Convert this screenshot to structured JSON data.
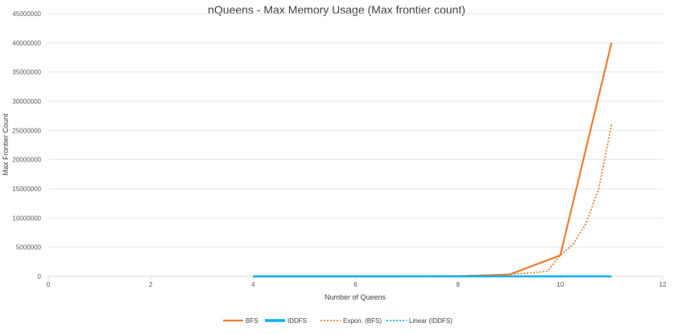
{
  "chart_data": {
    "type": "line",
    "title": "nQueens - Max Memory Usage (Max frontier count)",
    "xlabel": "Number of Queens",
    "ylabel": "Max Frontier Count",
    "xlim": [
      0,
      12
    ],
    "ylim": [
      0,
      45000000
    ],
    "x_ticks": [
      "0",
      "2",
      "4",
      "6",
      "8",
      "10",
      "12"
    ],
    "y_ticks": [
      "0",
      "5000000",
      "10000000",
      "15000000",
      "20000000",
      "25000000",
      "30000000",
      "35000000",
      "40000000",
      "45000000"
    ],
    "grid": "horizontal",
    "legend_position": "bottom",
    "series": [
      {
        "name": "BFS",
        "color": "#ED7D31",
        "style": "solid",
        "x": [
          4,
          5,
          6,
          7,
          8,
          9,
          10,
          11
        ],
        "y": [
          10,
          30,
          150,
          1000,
          8000,
          300000,
          3600000,
          40000000
        ]
      },
      {
        "name": "IDDFS",
        "color": "#00B0F0",
        "style": "solid",
        "x": [
          4,
          5,
          6,
          7,
          8,
          9,
          10,
          11
        ],
        "y": [
          10,
          15,
          20,
          25,
          30,
          40,
          45,
          50
        ]
      }
    ],
    "trendlines": [
      {
        "name": "Expon. (BFS)",
        "color": "#ED7D31",
        "style": "dotted",
        "x": [
          4,
          4.5,
          5,
          5.5,
          6,
          6.5,
          7,
          7.5,
          8,
          8.5,
          9,
          9.25,
          9.5,
          9.75,
          10,
          10.25,
          10.5,
          10.75,
          11
        ],
        "y": [
          700,
          1300,
          2400,
          4500,
          8400,
          15700,
          29200,
          54500,
          101500,
          189000,
          352000,
          479000,
          652000,
          887000,
          3600000,
          5500000,
          9000000,
          15000000,
          26000000
        ]
      },
      {
        "name": "Linear (IDDFS)",
        "color": "#00B0F0",
        "style": "dotted",
        "x": [
          4,
          11
        ],
        "y": [
          10,
          50
        ]
      }
    ]
  }
}
